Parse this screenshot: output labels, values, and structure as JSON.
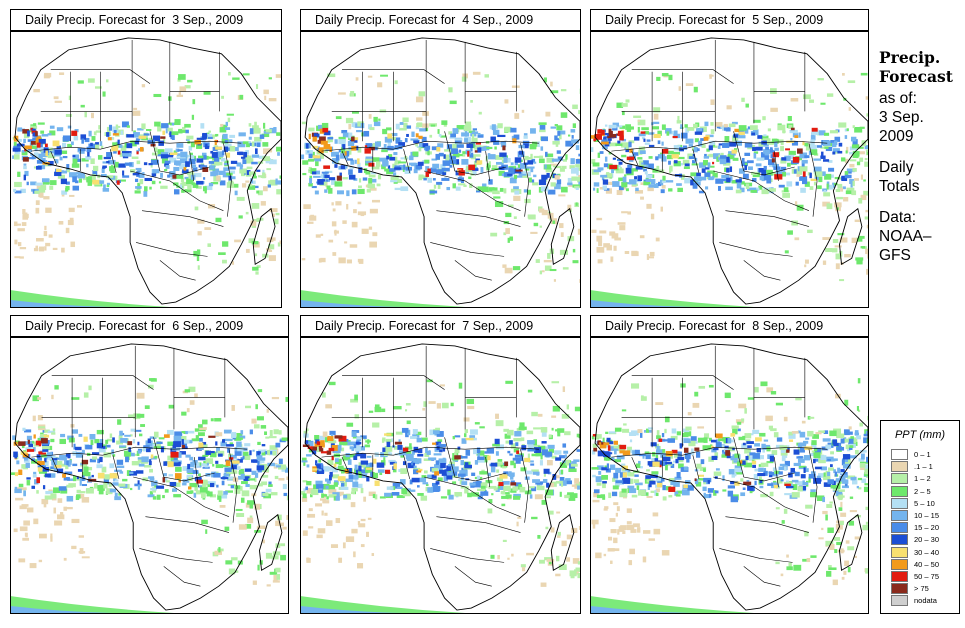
{
  "panels": [
    {
      "title_prefix": "Daily Precip. Forecast for",
      "date": "3 Sep., 2009"
    },
    {
      "title_prefix": "Daily Precip. Forecast for",
      "date": "4 Sep., 2009"
    },
    {
      "title_prefix": "Daily Precip. Forecast for",
      "date": "5 Sep., 2009"
    },
    {
      "title_prefix": "Daily Precip. Forecast for",
      "date": "6 Sep., 2009"
    },
    {
      "title_prefix": "Daily Precip. Forecast for",
      "date": "7 Sep., 2009"
    },
    {
      "title_prefix": "Daily Precip. Forecast for",
      "date": "8 Sep., 2009"
    }
  ],
  "side": {
    "title_line1": "Precip.",
    "title_line2": "Forecast",
    "asof_label": "as of:",
    "asof_date_line1": "3 Sep.",
    "asof_date_line2": "2009",
    "totals_line1": "Daily",
    "totals_line2": "Totals",
    "data_line1": "Data:",
    "data_line2": "NOAA–",
    "data_line3": "GFS"
  },
  "legend": {
    "title": "PPT (mm)",
    "items": [
      {
        "label": "0 – 1",
        "color": "#ffffff"
      },
      {
        "label": ".1 – 1",
        "color": "#ead6b2"
      },
      {
        "label": "1 – 2",
        "color": "#b6f0a8"
      },
      {
        "label": "2 – 5",
        "color": "#6ee86c"
      },
      {
        "label": "5 – 10",
        "color": "#b4e0f4"
      },
      {
        "label": "10 – 15",
        "color": "#74b4ee"
      },
      {
        "label": "15 – 20",
        "color": "#4a8ce8"
      },
      {
        "label": "20 – 30",
        "color": "#1c4ed4"
      },
      {
        "label": "30 – 40",
        "color": "#f8e070"
      },
      {
        "label": "40 – 50",
        "color": "#f29a1c"
      },
      {
        "label": "50 – 75",
        "color": "#e21c10"
      },
      {
        "label": "> 75",
        "color": "#8a2a1c"
      },
      {
        "label": "nodata",
        "color": "#cfcfcf"
      }
    ]
  }
}
